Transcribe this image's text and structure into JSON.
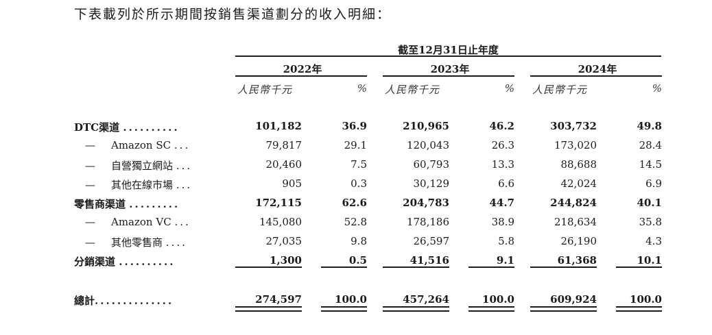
{
  "intro": "下表載列於所示期間按銷售渠道劃分的收入明細：",
  "span_header": "截至12月31日止年度",
  "years": [
    "2022年",
    "2023年",
    "2024年"
  ],
  "unit_label": "人民幣千元",
  "pct_label": "%",
  "rows": [
    {
      "label": "DTC渠道",
      "dots": "..........",
      "bold": true,
      "sub": false,
      "values": [
        "101,182",
        "36.9",
        "210,965",
        "46.2",
        "303,732",
        "49.8"
      ]
    },
    {
      "label": "Amazon SC",
      "dots": "...",
      "bold": false,
      "sub": true,
      "values": [
        "79,817",
        "29.1",
        "120,043",
        "26.3",
        "173,020",
        "28.4"
      ]
    },
    {
      "label": "自營獨立網站",
      "dots": "...",
      "bold": false,
      "sub": true,
      "values": [
        "20,460",
        "7.5",
        "60,793",
        "13.3",
        "88,688",
        "14.5"
      ]
    },
    {
      "label": "其他在線市場",
      "dots": "...",
      "bold": false,
      "sub": true,
      "values": [
        "905",
        "0.3",
        "30,129",
        "6.6",
        "42,024",
        "6.9"
      ]
    },
    {
      "label": "零售商渠道",
      "dots": ".........",
      "bold": true,
      "sub": false,
      "values": [
        "172,115",
        "62.6",
        "204,783",
        "44.7",
        "244,824",
        "40.1"
      ]
    },
    {
      "label": "Amazon VC",
      "dots": "...",
      "bold": false,
      "sub": true,
      "values": [
        "145,080",
        "52.8",
        "178,186",
        "38.9",
        "218,634",
        "35.8"
      ]
    },
    {
      "label": "其他零售商",
      "dots": "....",
      "bold": false,
      "sub": true,
      "values": [
        "27,035",
        "9.8",
        "26,597",
        "5.8",
        "26,190",
        "4.3"
      ]
    },
    {
      "label": "分銷渠道",
      "dots": "..........",
      "bold": true,
      "sub": false,
      "values": [
        "1,300",
        "0.5",
        "41,516",
        "9.1",
        "61,368",
        "10.1"
      ]
    }
  ],
  "total": {
    "label": "總計",
    "dots": "..............",
    "values": [
      "274,597",
      "100.0",
      "457,264",
      "100.0",
      "609,924",
      "100.0"
    ]
  }
}
